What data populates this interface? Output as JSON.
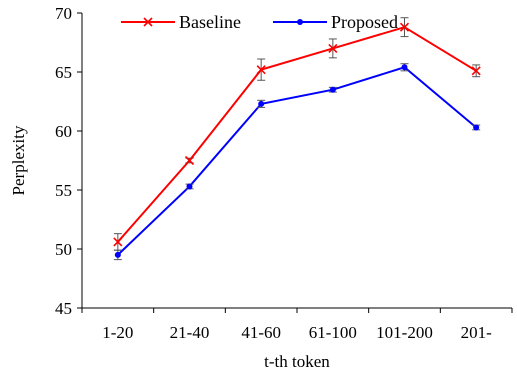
{
  "chart_data": {
    "type": "line",
    "title": "",
    "xlabel": "t-th token",
    "ylabel": "Perplexity",
    "categories": [
      "1-20",
      "21-40",
      "41-60",
      "61-100",
      "101-200",
      "201-"
    ],
    "ylim": [
      45,
      70
    ],
    "yticks": [
      45,
      50,
      55,
      60,
      65,
      70
    ],
    "grid": false,
    "legend_position": "top",
    "series": [
      {
        "name": "Baseline",
        "color": "#ff0000",
        "marker": "x",
        "values": [
          50.6,
          57.5,
          65.2,
          67.0,
          68.8,
          65.1
        ],
        "error": [
          0.7,
          0.2,
          0.9,
          0.8,
          0.8,
          0.5
        ]
      },
      {
        "name": "Proposed",
        "color": "#0000ff",
        "marker": "dot",
        "values": [
          49.5,
          55.3,
          62.3,
          63.5,
          65.4,
          60.3
        ],
        "error": [
          0.4,
          0.2,
          0.3,
          0.2,
          0.3,
          0.2
        ]
      }
    ]
  }
}
